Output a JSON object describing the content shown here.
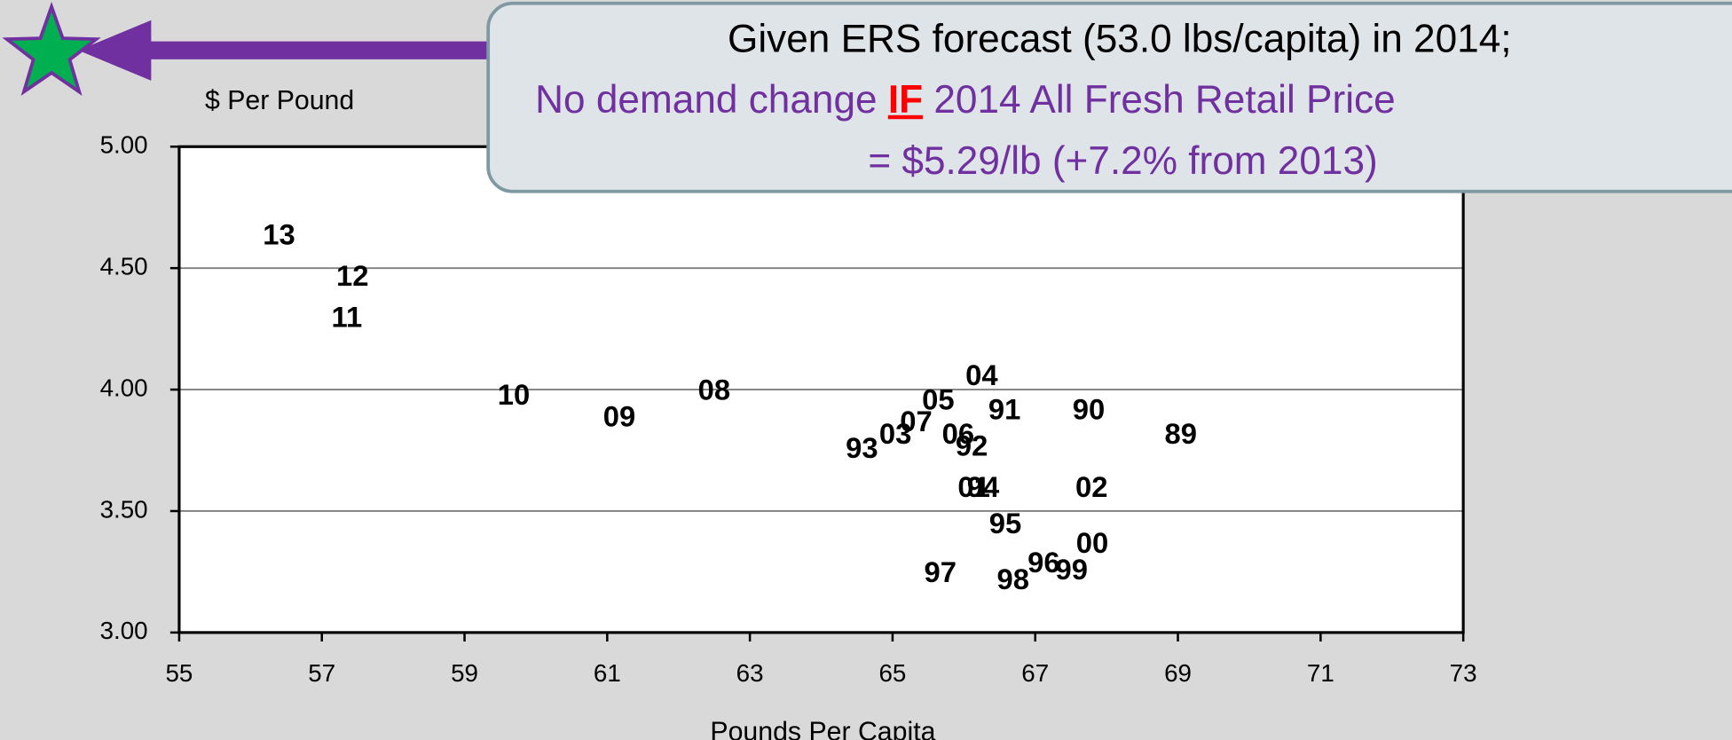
{
  "chart_data": {
    "type": "scatter",
    "y_axis_label": "$ Per Pound",
    "x_axis_label": "Pounds Per Capita",
    "annotation": {
      "line1": "Given ERS forecast (53.0 lbs/capita) in 2014;",
      "line2": [
        "No demand change ",
        "IF",
        " 2014 All Fresh Retail Price"
      ],
      "line3": "= $5.29/lb (+7.2% from 2013)"
    },
    "xlim": [
      55,
      73
    ],
    "xticks": [
      55,
      57,
      59,
      61,
      63,
      65,
      67,
      69,
      71,
      73
    ],
    "ylim": [
      3,
      5
    ],
    "yticks": [
      {
        "value": 3,
        "label": "3.00"
      },
      {
        "value": 3.5,
        "label": "3.50"
      },
      {
        "value": 4,
        "label": "4.00"
      },
      {
        "value": 4.5,
        "label": "4.50"
      },
      {
        "value": 5,
        "label": "5.00"
      }
    ],
    "grid": true,
    "series": [
      {
        "color": "#000000",
        "labels": [
          "13",
          "12",
          "11",
          "10",
          "09",
          "08",
          "04",
          "05",
          "91",
          "90",
          "89",
          "07",
          "03",
          "93",
          "06",
          "92",
          "94",
          "01",
          "02",
          "95",
          "00",
          "96",
          "99",
          "98",
          "97"
        ],
        "x": [
          56.4,
          57.43,
          57.35,
          59.69,
          61.17,
          62.5,
          66.25,
          65.64,
          66.57,
          67.75,
          69.04,
          65.33,
          65.04,
          64.57,
          65.92,
          66.11,
          66.27,
          66.14,
          67.79,
          66.58,
          67.8,
          67.12,
          67.51,
          66.69,
          65.67
        ],
        "values": [
          4.63,
          4.46,
          4.29,
          3.97,
          3.88,
          3.99,
          4.05,
          3.95,
          3.91,
          3.91,
          3.81,
          3.86,
          3.81,
          3.75,
          3.81,
          3.76,
          3.59,
          3.59,
          3.59,
          3.44,
          3.36,
          3.28,
          3.25,
          3.21,
          3.24
        ]
      }
    ]
  }
}
